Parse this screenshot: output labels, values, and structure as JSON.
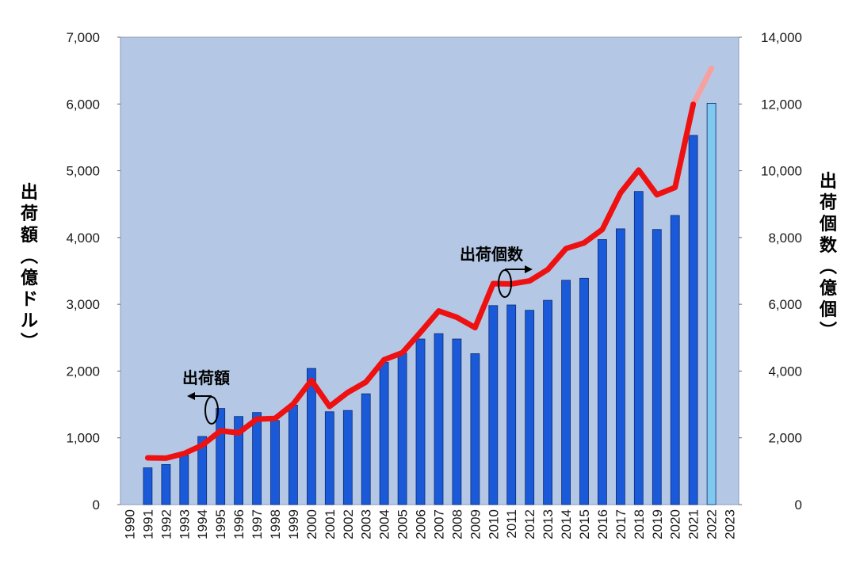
{
  "chart_data": {
    "type": "bar",
    "categories": [
      "1990",
      "1991",
      "1992",
      "1993",
      "1994",
      "1995",
      "1996",
      "1997",
      "1998",
      "1999",
      "2000",
      "2001",
      "2002",
      "2003",
      "2004",
      "2005",
      "2006",
      "2007",
      "2008",
      "2009",
      "2010",
      "2011",
      "2012",
      "2013",
      "2014",
      "2015",
      "2016",
      "2017",
      "2018",
      "2019",
      "2020",
      "2021",
      "2022",
      "2023"
    ],
    "series": [
      {
        "name": "出荷額",
        "axis": "left",
        "kind": "bar",
        "color": "#1a5ad8",
        "forecast_color": "#7fc8f0",
        "forecast_from": "2022",
        "values": [
          null,
          550,
          600,
          740,
          1020,
          1440,
          1320,
          1380,
          1260,
          1490,
          2040,
          1390,
          1410,
          1660,
          2130,
          2270,
          2480,
          2560,
          2480,
          2260,
          2980,
          2990,
          2910,
          3060,
          3360,
          3390,
          3970,
          4130,
          4690,
          4120,
          4330,
          5530,
          6010,
          null
        ]
      },
      {
        "name": "出荷個数",
        "axis": "right",
        "kind": "line",
        "color": "#ee1111",
        "forecast_color": "#f7a0a0",
        "forecast_from": "2022",
        "values": [
          null,
          1400,
          1390,
          1530,
          1780,
          2210,
          2150,
          2560,
          2580,
          3010,
          3720,
          2940,
          3360,
          3670,
          4340,
          4550,
          5160,
          5800,
          5610,
          5300,
          6620,
          6610,
          6700,
          7040,
          7670,
          7840,
          8240,
          9340,
          10020,
          9280,
          9500,
          11990,
          13070,
          null
        ]
      }
    ],
    "y_left": {
      "label": "出荷額（億ドル）",
      "lim": [
        0,
        7000
      ],
      "ticks": [
        "0",
        "1,000",
        "2,000",
        "3,000",
        "4,000",
        "5,000",
        "6,000",
        "7,000"
      ]
    },
    "y_right": {
      "label": "出荷個数（億個）",
      "lim": [
        0,
        14000
      ],
      "ticks": [
        "0",
        "2,000",
        "4,000",
        "6,000",
        "8,000",
        "10,000",
        "12,000",
        "14,000"
      ]
    },
    "annotations": [
      {
        "text": "出荷額",
        "points_to": "left"
      },
      {
        "text": "出荷個数",
        "points_to": "right"
      }
    ],
    "plot_background": "#b4c8e6",
    "grid": false
  }
}
